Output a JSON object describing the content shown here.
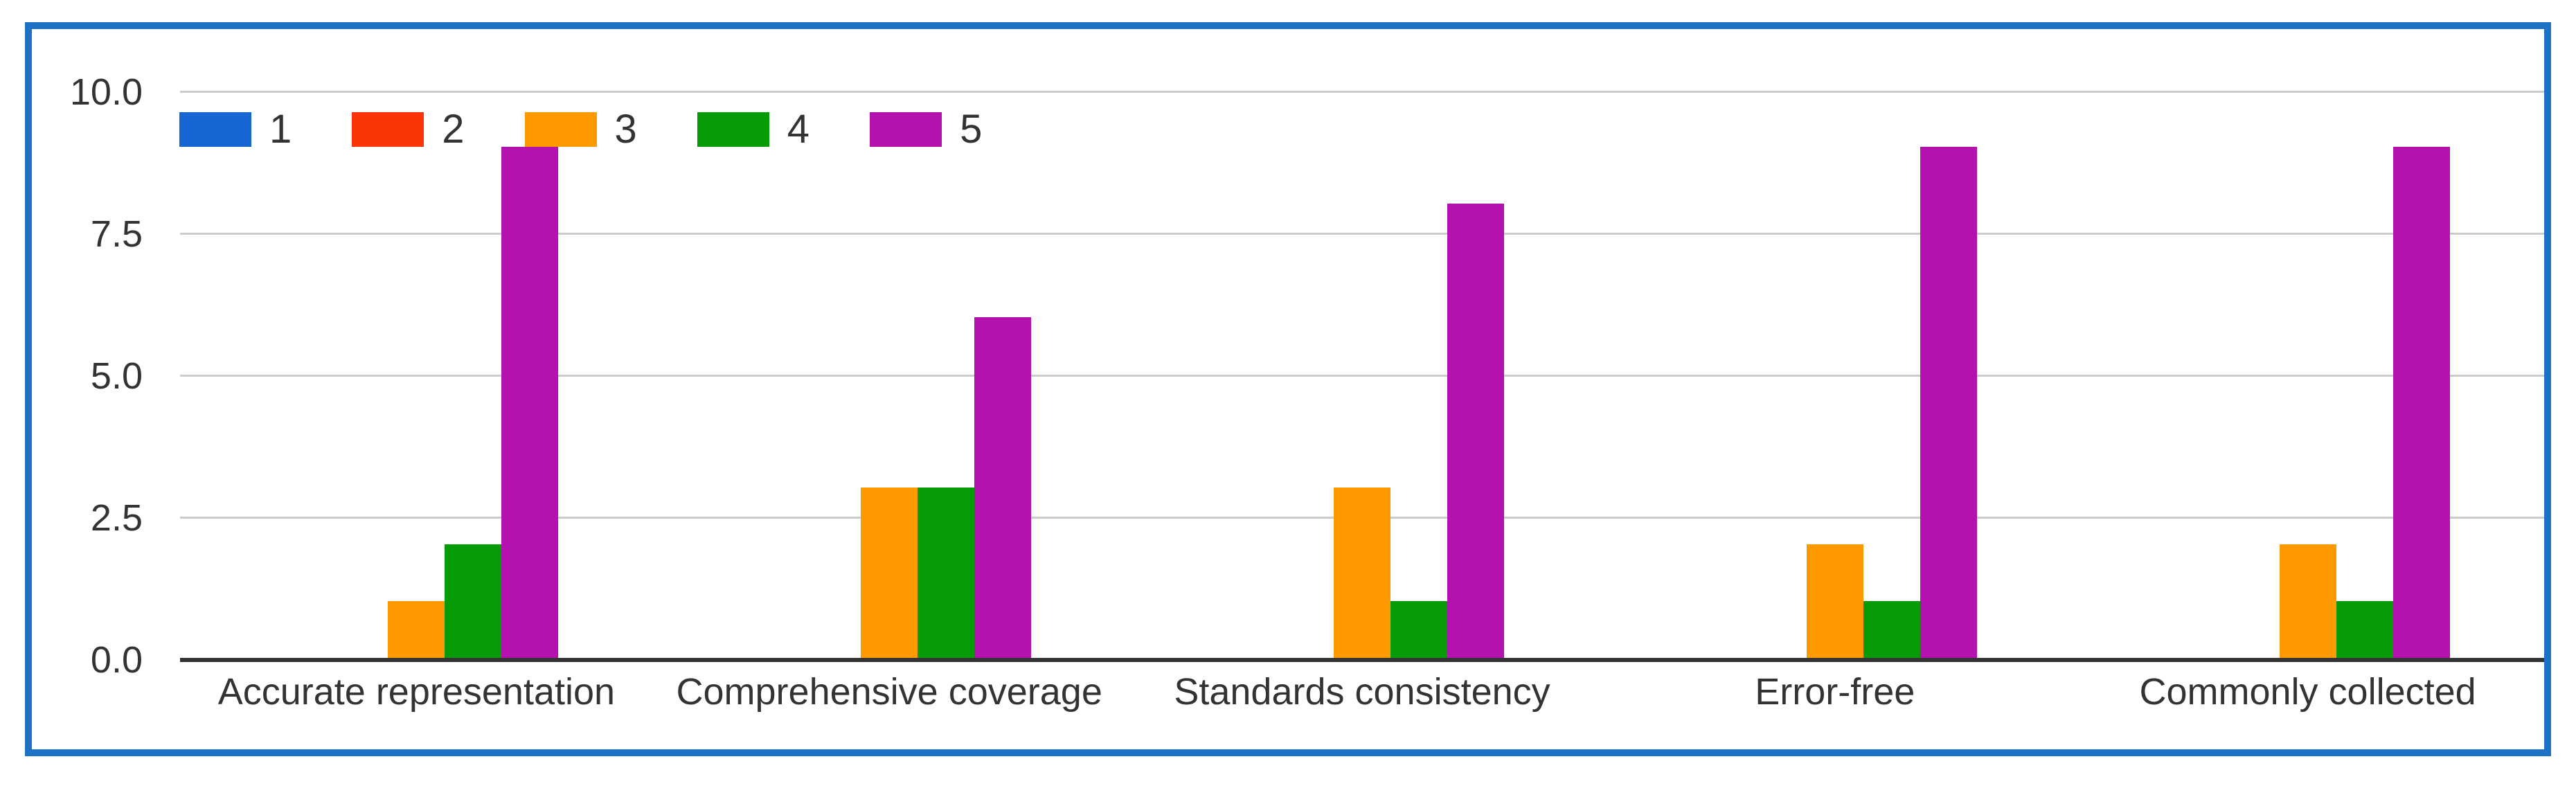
{
  "frame": {
    "border_color": "#1e72c6",
    "background_color": "#ffffff"
  },
  "chart_data": {
    "type": "bar",
    "title": "",
    "xlabel": "",
    "ylabel": "",
    "categories": [
      "Accurate representation",
      "Comprehensive coverage",
      "Standards consistency",
      "Error-free",
      "Commonly collected"
    ],
    "series": [
      {
        "name": "1",
        "color": "#1565d2",
        "values": [
          0,
          0,
          0,
          0,
          0
        ]
      },
      {
        "name": "2",
        "color": "#fb3605",
        "values": [
          0,
          0,
          0,
          0,
          0
        ]
      },
      {
        "name": "3",
        "color": "#ff9900",
        "values": [
          1,
          3,
          3,
          2,
          2
        ]
      },
      {
        "name": "4",
        "color": "#079b07",
        "values": [
          2,
          3,
          1,
          1,
          1
        ]
      },
      {
        "name": "5",
        "color": "#b511af",
        "values": [
          9,
          6,
          8,
          9,
          9
        ]
      }
    ],
    "ylim": [
      0,
      10
    ],
    "yticks": [
      {
        "label": "10.0",
        "value": 10
      },
      {
        "label": "7.5",
        "value": 7.5
      },
      {
        "label": "5.0",
        "value": 5
      },
      {
        "label": "2.5",
        "value": 2.5
      },
      {
        "label": "0.0",
        "value": 0
      }
    ],
    "grid": true,
    "legend_position": "top-left-inside",
    "gridline_color": "#cccccc",
    "baseline_color": "#333333",
    "axis_text_color": "#333333"
  }
}
